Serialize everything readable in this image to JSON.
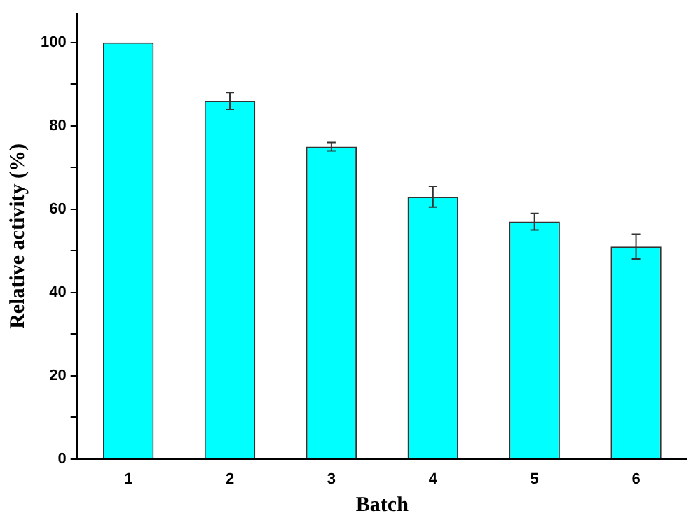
{
  "chart_data": {
    "type": "bar",
    "xlabel": "Batch",
    "ylabel": "Relative activity (%)",
    "categories": [
      "1",
      "2",
      "3",
      "4",
      "5",
      "6"
    ],
    "values": [
      100,
      86,
      75,
      63,
      57,
      51
    ],
    "errors": [
      null,
      2,
      1,
      2.5,
      2,
      3
    ],
    "color": "#00ffff",
    "ylim": [
      0,
      107
    ],
    "yticks": [
      0,
      {
        "value": 10,
        "label": null
      },
      20,
      {
        "value": 30,
        "label": null
      },
      40,
      {
        "value": 50,
        "label": null
      },
      60,
      {
        "value": 70,
        "label": null
      },
      80,
      {
        "value": 90,
        "label": null
      },
      100
    ],
    "grid": false,
    "legend": false
  }
}
